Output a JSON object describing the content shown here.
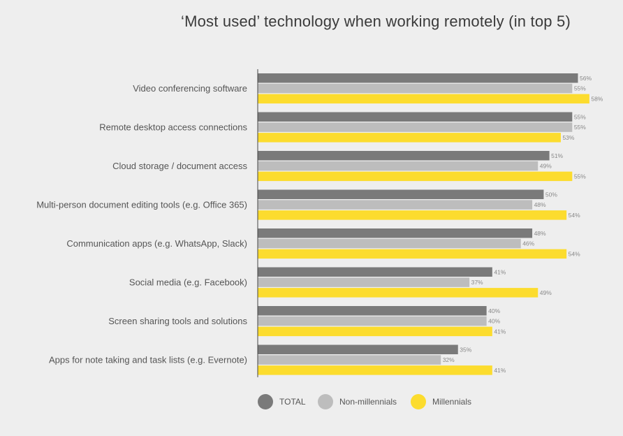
{
  "chart_data": {
    "type": "bar",
    "orientation": "horizontal",
    "title": "‘Most used’ technology when working remotely (in top 5)",
    "categories": [
      "Video conferencing software",
      "Remote desktop access connections",
      "Cloud storage / document access",
      "Multi-person document editing tools (e.g. Office 365)",
      "Communication apps (e.g. WhatsApp, Slack)",
      "Social media (e.g. Facebook)",
      "Screen sharing tools and solutions",
      "Apps for note taking and task lists (e.g. Evernote)"
    ],
    "series": [
      {
        "name": "TOTAL",
        "color": "#7a7a7a",
        "values": [
          56,
          55,
          51,
          50,
          48,
          41,
          40,
          35
        ]
      },
      {
        "name": "Non-millennials",
        "color": "#bdbdbd",
        "values": [
          55,
          55,
          49,
          48,
          46,
          37,
          40,
          32
        ]
      },
      {
        "name": "Millennials",
        "color": "#fcdc2e",
        "values": [
          58,
          53,
          55,
          54,
          54,
          49,
          41,
          41
        ]
      }
    ],
    "value_suffix": "%",
    "xlabel": "",
    "ylabel": "",
    "legend_position": "bottom",
    "grid": false
  }
}
